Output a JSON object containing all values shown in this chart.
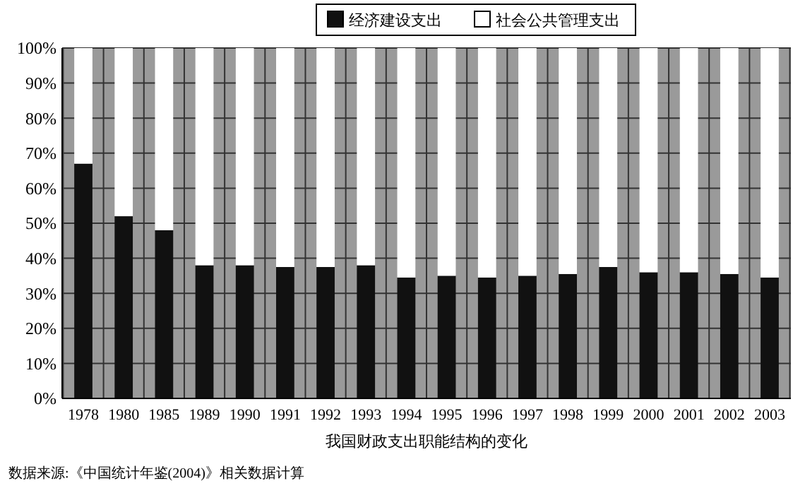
{
  "chart_data": {
    "type": "bar",
    "stacked": true,
    "xlabel": "我国财政支出职能结构的变化",
    "annotations": [
      "数据来源:《中国统计年鉴(2004)》相关数据计算"
    ],
    "categories": [
      "1978",
      "1980",
      "1985",
      "1989",
      "1990",
      "1991",
      "1992",
      "1993",
      "1994",
      "1995",
      "1996",
      "1997",
      "1998",
      "1999",
      "2000",
      "2001",
      "2002",
      "2003"
    ],
    "series": [
      {
        "name": "经济建设支出",
        "color": "#111111",
        "values": [
          67,
          52,
          48,
          38,
          38,
          37.5,
          37.5,
          38,
          34.5,
          35,
          34.5,
          35,
          35.5,
          37.5,
          36,
          36,
          35.5,
          34.5
        ]
      },
      {
        "name": "社会公共管理支出",
        "color": "#ffffff",
        "values": [
          33,
          48,
          52,
          62,
          62,
          62.5,
          62.5,
          62,
          65.5,
          65,
          65.5,
          65,
          64.5,
          62.5,
          64,
          64,
          64.5,
          65.5
        ]
      }
    ],
    "ylim": [
      0,
      100
    ],
    "yticks": [
      {
        "value": 0,
        "label": "0%"
      },
      {
        "value": 10,
        "label": "10%"
      },
      {
        "value": 20,
        "label": "20%"
      },
      {
        "value": 30,
        "label": "30%"
      },
      {
        "value": 40,
        "label": "40%"
      },
      {
        "value": 50,
        "label": "50%"
      },
      {
        "value": 60,
        "label": "60%"
      },
      {
        "value": 70,
        "label": "70%"
      },
      {
        "value": 80,
        "label": "80%"
      },
      {
        "value": 90,
        "label": "90%"
      },
      {
        "value": 100,
        "label": "100%"
      }
    ],
    "grid": true,
    "legend": "top right"
  }
}
